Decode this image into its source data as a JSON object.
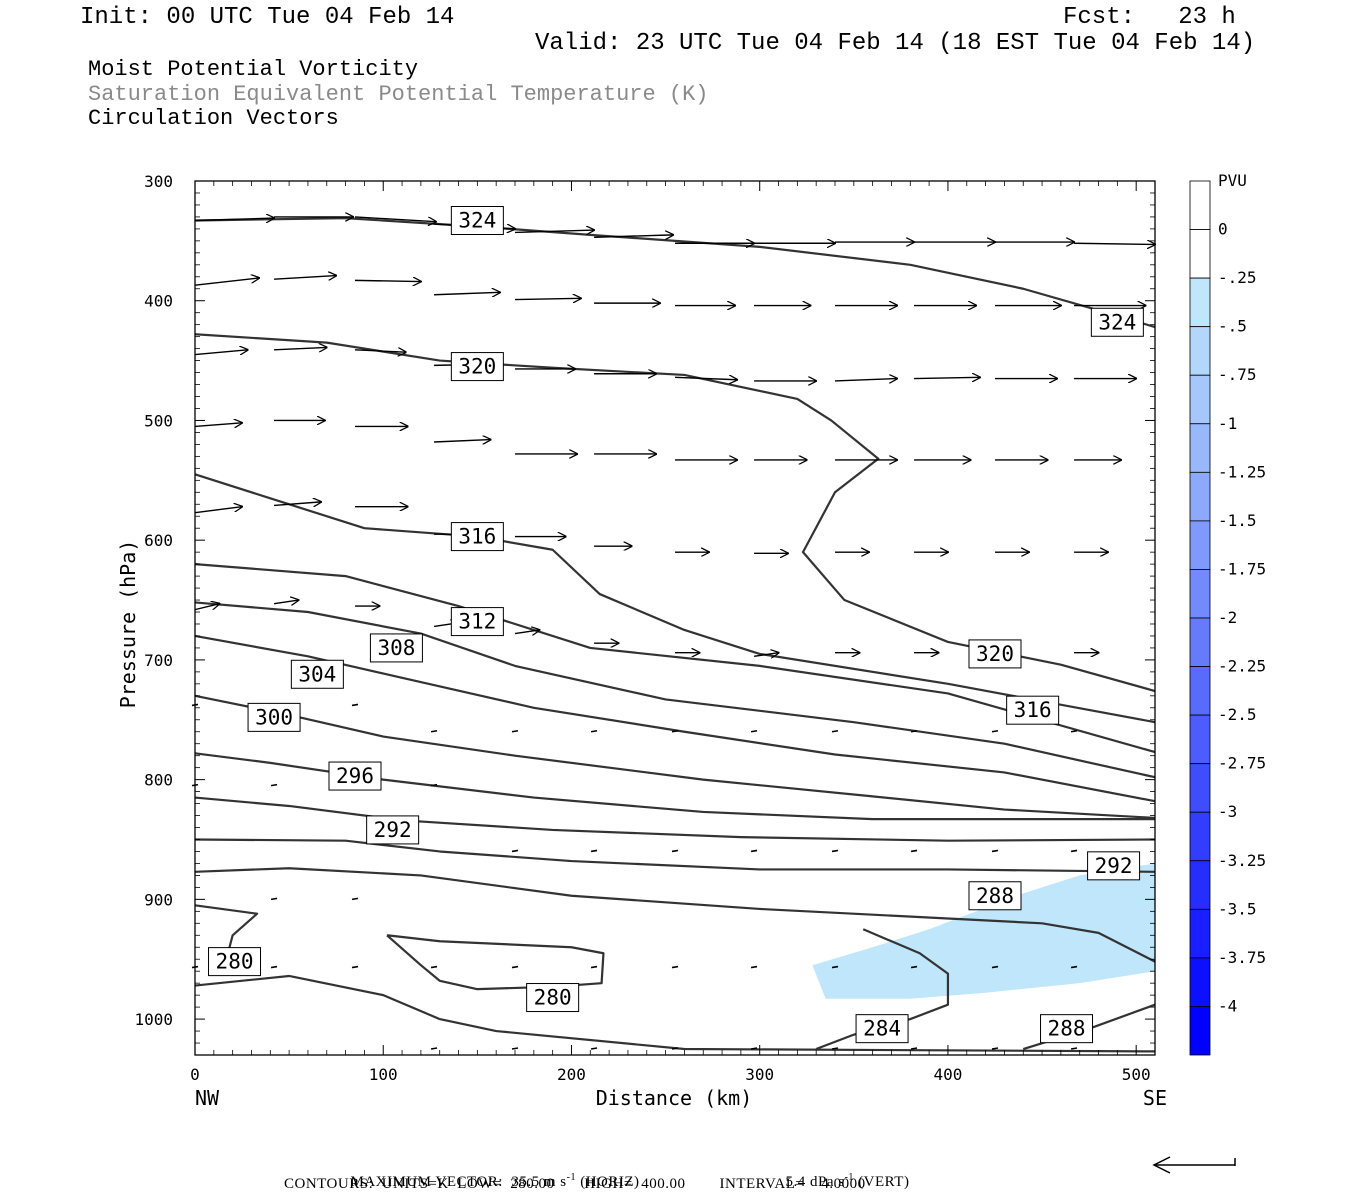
{
  "header": {
    "init": "Init: 00 UTC Tue 04 Feb 14",
    "fcst": "Fcst:   23 h",
    "valid": "Valid: 23 UTC Tue 04 Feb 14 (18 EST Tue 04 Feb 14)"
  },
  "fields": {
    "line1": "Moist Potential Vorticity",
    "line2": "Saturation Equivalent Potential Temperature (K)",
    "line3": "Circulation Vectors"
  },
  "footer": {
    "max_vector_prefix": "MAXIMUM VECTOR:  35.5 m s",
    "horiz_suffix": " (HORIZ)",
    "vert_prefix": "5.4 dPa s",
    "vert_suffix": " (VERT)",
    "exp": "-1",
    "contours": "CONTOURS:  UNITS=K  LOW=  280.00       HIGH=  400.00        INTERVAL=    4.0000"
  },
  "colors": {
    "contour": "#333333",
    "shade_light": "#bfe6fa",
    "colorbar_top": "#ffffff",
    "colorbar_bottom": "#0000ff"
  },
  "chart_data": {
    "type": "cross-section",
    "xlabel": "Distance (km)",
    "ylabel": "Pressure (hPa)",
    "xlim": [
      0,
      510
    ],
    "ylim": [
      1030,
      300
    ],
    "x_ticks": [
      0,
      100,
      200,
      300,
      400,
      500
    ],
    "y_ticks": [
      300,
      400,
      500,
      600,
      700,
      800,
      900,
      1000
    ],
    "x_end_labels": {
      "left": "NW",
      "right": "SE"
    },
    "colorbar": {
      "title": "PVU",
      "levels": [
        "0",
        "-.25",
        "-.5",
        "-.75",
        "-1",
        "-1.25",
        "-1.5",
        "-1.75",
        "-2",
        "-2.25",
        "-2.5",
        "-2.75",
        "-3",
        "-3.25",
        "-3.5",
        "-3.75",
        "-4"
      ]
    },
    "contours": [
      {
        "value": 324,
        "points": [
          [
            0,
            333
          ],
          [
            80,
            331
          ],
          [
            150,
            338
          ],
          [
            210,
            345
          ],
          [
            300,
            355
          ],
          [
            380,
            370
          ],
          [
            440,
            390
          ],
          [
            480,
            408
          ],
          [
            510,
            422
          ]
        ]
      },
      {
        "value": 320,
        "points": [
          [
            0,
            428
          ],
          [
            70,
            435
          ],
          [
            130,
            450
          ],
          [
            190,
            456
          ],
          [
            260,
            462
          ],
          [
            320,
            482
          ],
          [
            338,
            500
          ],
          [
            363,
            532
          ],
          [
            340,
            560
          ],
          [
            323,
            610
          ],
          [
            345,
            650
          ],
          [
            400,
            685
          ],
          [
            460,
            704
          ],
          [
            510,
            726
          ]
        ]
      },
      {
        "value": 316,
        "points": [
          [
            0,
            545
          ],
          [
            40,
            565
          ],
          [
            90,
            590
          ],
          [
            150,
            597
          ],
          [
            190,
            608
          ],
          [
            215,
            645
          ],
          [
            260,
            675
          ],
          [
            300,
            695
          ],
          [
            400,
            720
          ],
          [
            510,
            752
          ]
        ]
      },
      {
        "value": 312,
        "points": [
          [
            0,
            620
          ],
          [
            80,
            630
          ],
          [
            140,
            655
          ],
          [
            210,
            690
          ],
          [
            300,
            705
          ],
          [
            400,
            728
          ],
          [
            510,
            777
          ]
        ]
      },
      {
        "value": 308,
        "points": [
          [
            0,
            652
          ],
          [
            60,
            660
          ],
          [
            120,
            678
          ],
          [
            170,
            705
          ],
          [
            250,
            733
          ],
          [
            350,
            752
          ],
          [
            430,
            770
          ],
          [
            510,
            798
          ]
        ]
      },
      {
        "value": 304,
        "points": [
          [
            0,
            680
          ],
          [
            60,
            697
          ],
          [
            110,
            715
          ],
          [
            180,
            740
          ],
          [
            260,
            760
          ],
          [
            340,
            779
          ],
          [
            430,
            794
          ],
          [
            510,
            818
          ]
        ]
      },
      {
        "value": 300,
        "points": [
          [
            0,
            730
          ],
          [
            50,
            746
          ],
          [
            100,
            764
          ],
          [
            170,
            780
          ],
          [
            270,
            800
          ],
          [
            360,
            814
          ],
          [
            430,
            825
          ],
          [
            510,
            832
          ]
        ]
      },
      {
        "value": 296,
        "points": [
          [
            0,
            778
          ],
          [
            40,
            786
          ],
          [
            100,
            800
          ],
          [
            180,
            815
          ],
          [
            270,
            827
          ],
          [
            360,
            833
          ],
          [
            510,
            833
          ]
        ]
      },
      {
        "value": 292,
        "points": [
          [
            0,
            815
          ],
          [
            50,
            822
          ],
          [
            110,
            834
          ],
          [
            190,
            842
          ],
          [
            290,
            848
          ],
          [
            400,
            851
          ],
          [
            510,
            850
          ]
        ]
      },
      {
        "value": 292,
        "points": [
          [
            0,
            850
          ],
          [
            80,
            851
          ],
          [
            130,
            860
          ],
          [
            200,
            868
          ],
          [
            300,
            875
          ],
          [
            400,
            875
          ],
          [
            510,
            877
          ]
        ]
      },
      {
        "value": 288,
        "points": [
          [
            0,
            877
          ],
          [
            50,
            874
          ],
          [
            120,
            880
          ],
          [
            200,
            897
          ],
          [
            300,
            908
          ],
          [
            400,
            916
          ],
          [
            450,
            920
          ],
          [
            480,
            928
          ],
          [
            510,
            952
          ]
        ]
      },
      {
        "value": 288,
        "points": [
          [
            440,
            1025
          ],
          [
            475,
            1008
          ],
          [
            510,
            988
          ]
        ]
      },
      {
        "value": 284,
        "points": [
          [
            330,
            1025
          ],
          [
            350,
            1013
          ],
          [
            380,
            1000
          ],
          [
            400,
            988
          ],
          [
            400,
            962
          ],
          [
            385,
            945
          ],
          [
            355,
            925
          ]
        ]
      },
      {
        "value": 280,
        "points": [
          [
            0,
            905
          ],
          [
            33,
            912
          ],
          [
            20,
            930
          ],
          [
            15,
            960
          ]
        ]
      },
      {
        "value": 280,
        "points": [
          [
            0,
            972
          ],
          [
            50,
            964
          ],
          [
            100,
            980
          ],
          [
            130,
            1000
          ],
          [
            160,
            1010
          ],
          [
            260,
            1025
          ],
          [
            510,
            1027
          ]
        ]
      },
      {
        "value": 280,
        "points": [
          [
            102,
            930
          ],
          [
            130,
            935
          ],
          [
            200,
            940
          ],
          [
            217,
            945
          ],
          [
            216,
            970
          ],
          [
            190,
            973
          ],
          [
            150,
            975
          ],
          [
            130,
            968
          ],
          [
            120,
            955
          ],
          [
            102,
            930
          ]
        ]
      }
    ],
    "contour_labels": [
      {
        "text": "324",
        "x": 150,
        "y": 333
      },
      {
        "text": "324",
        "x": 490,
        "y": 418
      },
      {
        "text": "320",
        "x": 150,
        "y": 455
      },
      {
        "text": "320",
        "x": 425,
        "y": 695
      },
      {
        "text": "316",
        "x": 150,
        "y": 597
      },
      {
        "text": "316",
        "x": 445,
        "y": 742
      },
      {
        "text": "312",
        "x": 150,
        "y": 668
      },
      {
        "text": "308",
        "x": 107,
        "y": 690
      },
      {
        "text": "304",
        "x": 65,
        "y": 712
      },
      {
        "text": "300",
        "x": 42,
        "y": 748
      },
      {
        "text": "296",
        "x": 85,
        "y": 797
      },
      {
        "text": "292",
        "x": 105,
        "y": 842
      },
      {
        "text": "292",
        "x": 488,
        "y": 872
      },
      {
        "text": "288",
        "x": 425,
        "y": 897
      },
      {
        "text": "288",
        "x": 463,
        "y": 1008
      },
      {
        "text": "284",
        "x": 365,
        "y": 1008
      },
      {
        "text": "280",
        "x": 21,
        "y": 952
      },
      {
        "text": "280",
        "x": 190,
        "y": 982
      }
    ],
    "shaded_region": {
      "pvu_level": "-.25",
      "points": [
        [
          328,
          955
        ],
        [
          360,
          940
        ],
        [
          390,
          925
        ],
        [
          415,
          910
        ],
        [
          440,
          895
        ],
        [
          470,
          880
        ],
        [
          510,
          870
        ],
        [
          510,
          960
        ],
        [
          470,
          970
        ],
        [
          420,
          978
        ],
        [
          380,
          983
        ],
        [
          335,
          983
        ]
      ]
    },
    "vectors": [
      {
        "x": 0,
        "p": 333,
        "dx": 42,
        "dp": -2
      },
      {
        "x": 42,
        "p": 330,
        "dx": 42,
        "dp": 0
      },
      {
        "x": 85,
        "p": 330,
        "dx": 43,
        "dp": 4
      },
      {
        "x": 127,
        "p": 336,
        "dx": 43,
        "dp": 4
      },
      {
        "x": 170,
        "p": 343,
        "dx": 42,
        "dp": -2
      },
      {
        "x": 212,
        "p": 347,
        "dx": 42,
        "dp": -2
      },
      {
        "x": 255,
        "p": 352,
        "dx": 42,
        "dp": 0
      },
      {
        "x": 297,
        "p": 352,
        "dx": 43,
        "dp": 0
      },
      {
        "x": 340,
        "p": 351,
        "dx": 42,
        "dp": 0
      },
      {
        "x": 382,
        "p": 351,
        "dx": 43,
        "dp": 0
      },
      {
        "x": 425,
        "p": 351,
        "dx": 42,
        "dp": 0
      },
      {
        "x": 467,
        "p": 352,
        "dx": 43,
        "dp": 1
      },
      {
        "x": 0,
        "p": 387,
        "dx": 34,
        "dp": -6
      },
      {
        "x": 42,
        "p": 382,
        "dx": 33,
        "dp": -3
      },
      {
        "x": 85,
        "p": 383,
        "dx": 35,
        "dp": 1
      },
      {
        "x": 127,
        "p": 395,
        "dx": 35,
        "dp": -2
      },
      {
        "x": 170,
        "p": 399,
        "dx": 35,
        "dp": -1
      },
      {
        "x": 212,
        "p": 402,
        "dx": 35,
        "dp": 0
      },
      {
        "x": 255,
        "p": 404,
        "dx": 32,
        "dp": 0
      },
      {
        "x": 297,
        "p": 404,
        "dx": 30,
        "dp": 0
      },
      {
        "x": 340,
        "p": 404,
        "dx": 33,
        "dp": 0
      },
      {
        "x": 382,
        "p": 404,
        "dx": 33,
        "dp": 0
      },
      {
        "x": 425,
        "p": 404,
        "dx": 35,
        "dp": 0
      },
      {
        "x": 467,
        "p": 404,
        "dx": 38,
        "dp": 0
      },
      {
        "x": 0,
        "p": 445,
        "dx": 28,
        "dp": -4
      },
      {
        "x": 42,
        "p": 441,
        "dx": 28,
        "dp": -2
      },
      {
        "x": 85,
        "p": 441,
        "dx": 27,
        "dp": 2
      },
      {
        "x": 127,
        "p": 454,
        "dx": 30,
        "dp": -1
      },
      {
        "x": 170,
        "p": 457,
        "dx": 32,
        "dp": 0
      },
      {
        "x": 212,
        "p": 461,
        "dx": 33,
        "dp": 0
      },
      {
        "x": 255,
        "p": 464,
        "dx": 33,
        "dp": 2
      },
      {
        "x": 297,
        "p": 467,
        "dx": 33,
        "dp": 0
      },
      {
        "x": 340,
        "p": 467,
        "dx": 33,
        "dp": -2
      },
      {
        "x": 382,
        "p": 465,
        "dx": 35,
        "dp": -1
      },
      {
        "x": 425,
        "p": 465,
        "dx": 33,
        "dp": 0
      },
      {
        "x": 467,
        "p": 465,
        "dx": 33,
        "dp": 0
      },
      {
        "x": 0,
        "p": 505,
        "dx": 25,
        "dp": -3
      },
      {
        "x": 42,
        "p": 500,
        "dx": 27,
        "dp": 0
      },
      {
        "x": 85,
        "p": 505,
        "dx": 28,
        "dp": 0
      },
      {
        "x": 127,
        "p": 518,
        "dx": 30,
        "dp": -2
      },
      {
        "x": 170,
        "p": 528,
        "dx": 33,
        "dp": 0
      },
      {
        "x": 212,
        "p": 528,
        "dx": 33,
        "dp": 0
      },
      {
        "x": 255,
        "p": 533,
        "dx": 33,
        "dp": 0
      },
      {
        "x": 297,
        "p": 533,
        "dx": 28,
        "dp": 0
      },
      {
        "x": 340,
        "p": 533,
        "dx": 33,
        "dp": 0
      },
      {
        "x": 382,
        "p": 533,
        "dx": 30,
        "dp": 0
      },
      {
        "x": 425,
        "p": 533,
        "dx": 28,
        "dp": 0
      },
      {
        "x": 467,
        "p": 533,
        "dx": 25,
        "dp": 0
      },
      {
        "x": 0,
        "p": 577,
        "dx": 25,
        "dp": -5
      },
      {
        "x": 42,
        "p": 571,
        "dx": 25,
        "dp": -3
      },
      {
        "x": 85,
        "p": 572,
        "dx": 28,
        "dp": 0
      },
      {
        "x": 127,
        "p": 595,
        "dx": 28,
        "dp": 0
      },
      {
        "x": 170,
        "p": 597,
        "dx": 27,
        "dp": 0
      },
      {
        "x": 212,
        "p": 605,
        "dx": 20,
        "dp": 0
      },
      {
        "x": 255,
        "p": 610,
        "dx": 18,
        "dp": 0
      },
      {
        "x": 297,
        "p": 611,
        "dx": 18,
        "dp": 0
      },
      {
        "x": 340,
        "p": 610,
        "dx": 18,
        "dp": 0
      },
      {
        "x": 382,
        "p": 610,
        "dx": 18,
        "dp": 0
      },
      {
        "x": 425,
        "p": 610,
        "dx": 18,
        "dp": 0
      },
      {
        "x": 467,
        "p": 610,
        "dx": 18,
        "dp": 0
      },
      {
        "x": 0,
        "p": 658,
        "dx": 13,
        "dp": -5
      },
      {
        "x": 42,
        "p": 653,
        "dx": 13,
        "dp": -3
      },
      {
        "x": 85,
        "p": 655,
        "dx": 13,
        "dp": 0
      },
      {
        "x": 127,
        "p": 672,
        "dx": 13,
        "dp": -3
      },
      {
        "x": 170,
        "p": 678,
        "dx": 13,
        "dp": -3
      },
      {
        "x": 212,
        "p": 686,
        "dx": 13,
        "dp": 0
      },
      {
        "x": 255,
        "p": 694,
        "dx": 13,
        "dp": 0
      },
      {
        "x": 297,
        "p": 697,
        "dx": 13,
        "dp": -3
      },
      {
        "x": 340,
        "p": 694,
        "dx": 13,
        "dp": 0
      },
      {
        "x": 382,
        "p": 694,
        "dx": 13,
        "dp": 0
      },
      {
        "x": 425,
        "p": 694,
        "dx": 13,
        "dp": 0
      },
      {
        "x": 467,
        "p": 694,
        "dx": 13,
        "dp": 0
      }
    ]
  }
}
